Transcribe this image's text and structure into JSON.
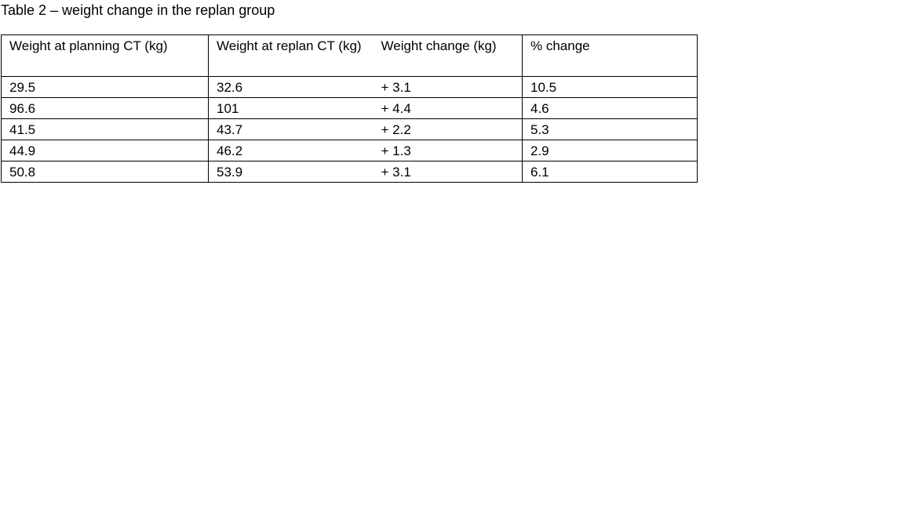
{
  "title": "Table 2 – weight change in the replan group",
  "table": {
    "header": [
      "Weight at planning CT (kg)",
      "Weight at replan CT (kg)",
      "Weight change (kg)",
      "% change"
    ],
    "rows": [
      [
        "29.5",
        "32.6",
        "+ 3.1",
        "10.5"
      ],
      [
        "96.6",
        "101",
        "+ 4.4",
        "4.6"
      ],
      [
        "41.5",
        "43.7",
        "+ 2.2",
        "5.3"
      ],
      [
        "44.9",
        "46.2",
        "+ 1.3",
        "2.9"
      ],
      [
        "50.8",
        "53.9",
        "+ 3.1",
        "6.1"
      ]
    ]
  }
}
